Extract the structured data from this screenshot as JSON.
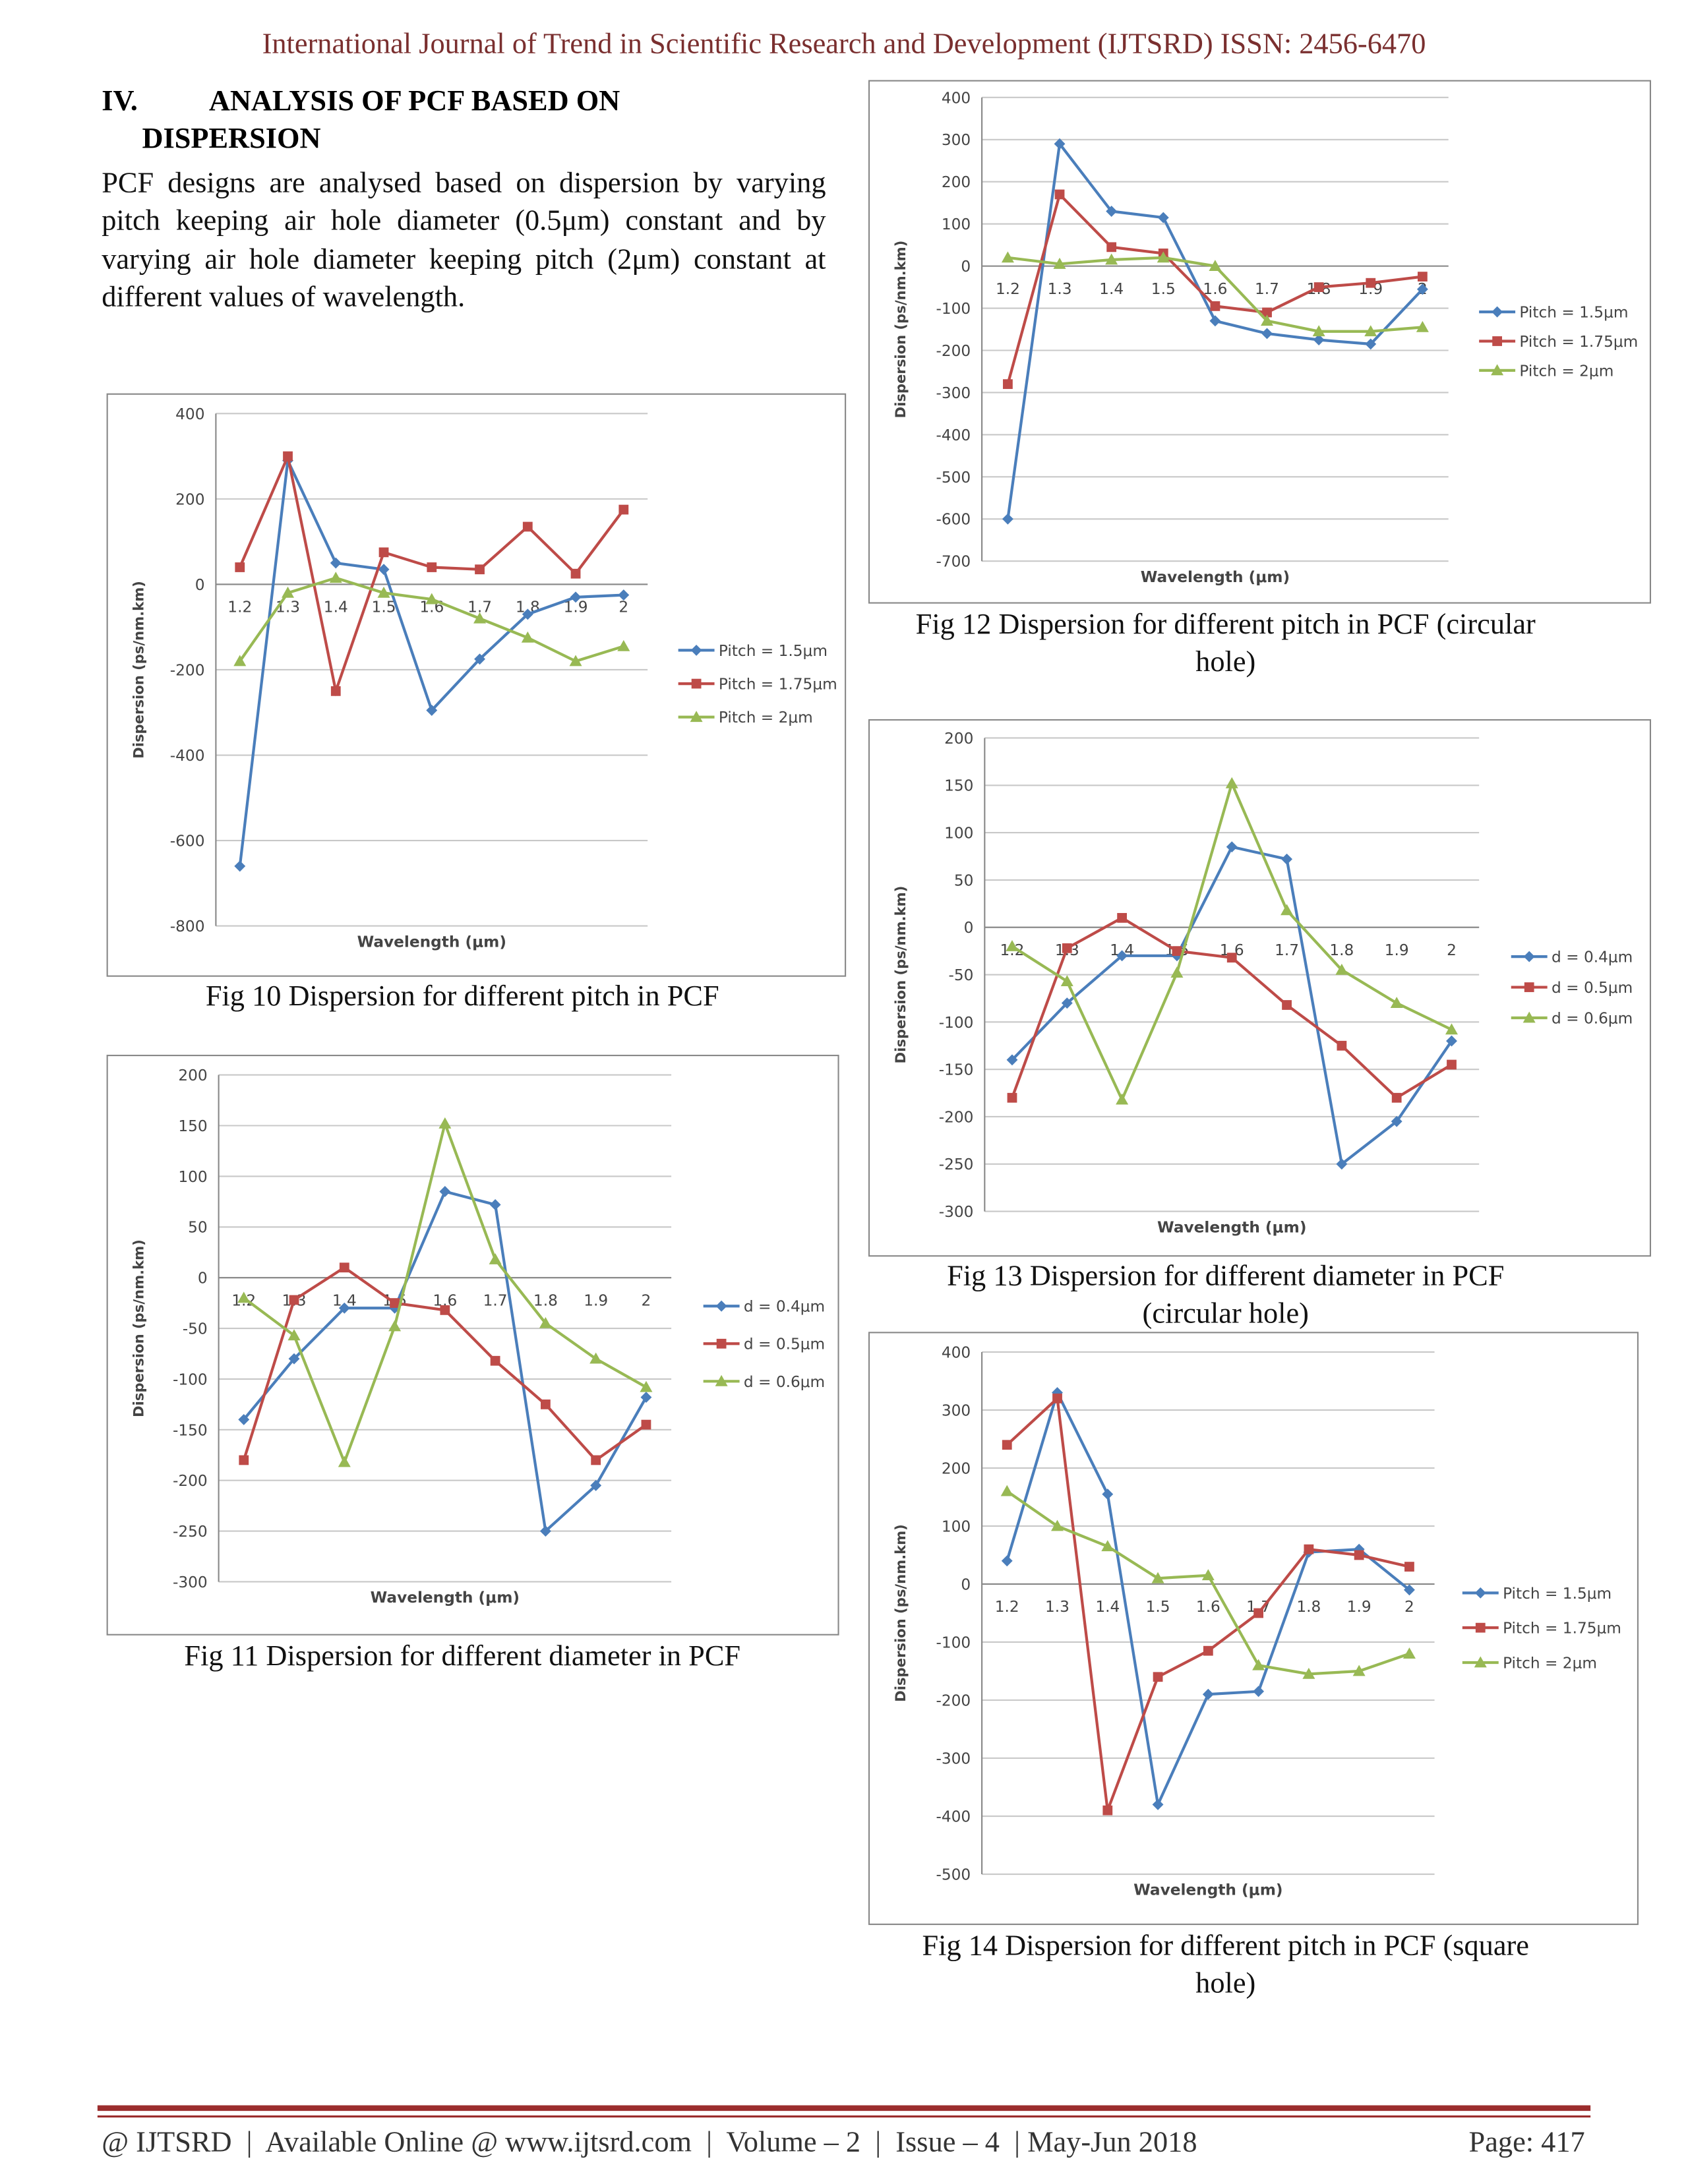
{
  "header": "International Journal of Trend in Scientific Research and Development (IJTSRD) ISSN: 2456-6470",
  "section": {
    "number": "IV.",
    "title": [
      "ANALYSIS OF PCF BASED ON",
      "DISPERSION"
    ]
  },
  "paragraph": "PCF designs are analysed based on dispersion by varying pitch keeping air hole diameter (0.5μm) constant and by varying air hole diameter keeping pitch (2μm) constant at different values of wavelength.",
  "footer": {
    "left": "@ IJTSRD  |  Available Online @ www.ijtsrd.com  |  Volume – 2  |  Issue – 4  | May-Jun 2018",
    "page": "Page: 417"
  },
  "chart_data": [
    {
      "type": "line",
      "caption": [
        "Fig 10 Dispersion for different pitch in PCF"
      ],
      "xlabel": "Wavelength (μm)",
      "ylabel": "Dispersion (ps/nm.km)",
      "categories": [
        "1.2",
        "1.3",
        "1.4",
        "1.5",
        "1.6",
        "1.7",
        "1.8",
        "1.9",
        "2"
      ],
      "series": [
        {
          "name": "Pitch = 1.5μm",
          "color": "#4a7ebb",
          "values": [
            -660,
            290,
            50,
            35,
            -295,
            -175,
            -70,
            -30,
            -25
          ]
        },
        {
          "name": "Pitch = 1.75μm",
          "color": "#be4b48",
          "values": [
            40,
            300,
            -250,
            75,
            40,
            35,
            135,
            25,
            175
          ]
        },
        {
          "name": "Pitch = 2μm",
          "color": "#98b954",
          "values": [
            -180,
            -20,
            15,
            -20,
            -35,
            -80,
            -125,
            -180,
            -145
          ]
        }
      ],
      "ylim": [
        -800,
        400
      ],
      "yticks": [
        400,
        200,
        0,
        -200,
        -400,
        -600,
        -800
      ],
      "grid": true
    },
    {
      "type": "line",
      "caption": [
        "Fig 11 Dispersion for different diameter in PCF"
      ],
      "xlabel": "Wavelength (μm)",
      "ylabel": "Dispersion (ps/nm.km)",
      "categories": [
        "1.2",
        "1.3",
        "1.4",
        "1.5",
        "1.6",
        "1.7",
        "1.8",
        "1.9",
        "2"
      ],
      "series": [
        {
          "name": "d = 0.4μm",
          "color": "#4a7ebb",
          "values": [
            -140,
            -80,
            -30,
            -30,
            85,
            72,
            -250,
            -205,
            -118
          ]
        },
        {
          "name": "d = 0.5μm",
          "color": "#be4b48",
          "values": [
            -180,
            -22,
            10,
            -25,
            -32,
            -82,
            -125,
            -180,
            -145
          ]
        },
        {
          "name": "d = 0.6μm",
          "color": "#98b954",
          "values": [
            -20,
            -57,
            -182,
            -48,
            152,
            18,
            -45,
            -80,
            -108
          ]
        }
      ],
      "ylim": [
        -300,
        200
      ],
      "yticks": [
        200,
        150,
        100,
        50,
        0,
        -50,
        -100,
        -150,
        -200,
        -250,
        -300
      ],
      "grid": true
    },
    {
      "type": "line",
      "caption": [
        "Fig 12 Dispersion for different pitch in PCF (circular",
        "hole)"
      ],
      "xlabel": "Wavelength (μm)",
      "ylabel": "Dispersion (ps/nm.km)",
      "categories": [
        "1.2",
        "1.3",
        "1.4",
        "1.5",
        "1.6",
        "1.7",
        "1.8",
        "1.9",
        "2"
      ],
      "series": [
        {
          "name": "Pitch = 1.5μm",
          "color": "#4a7ebb",
          "values": [
            -600,
            290,
            130,
            115,
            -130,
            -160,
            -175,
            -185,
            -55
          ]
        },
        {
          "name": "Pitch = 1.75μm",
          "color": "#be4b48",
          "values": [
            -280,
            170,
            45,
            30,
            -95,
            -110,
            -50,
            -40,
            -25
          ]
        },
        {
          "name": "Pitch = 2μm",
          "color": "#98b954",
          "values": [
            20,
            5,
            15,
            20,
            0,
            -130,
            -155,
            -155,
            -145
          ]
        }
      ],
      "ylim": [
        -700,
        400
      ],
      "yticks": [
        400,
        300,
        200,
        100,
        0,
        -100,
        -200,
        -300,
        -400,
        -500,
        -600,
        -700
      ],
      "grid": true
    },
    {
      "type": "line",
      "caption": [
        "Fig 13 Dispersion for different diameter in PCF",
        "(circular hole)"
      ],
      "xlabel": "Wavelength (μm)",
      "ylabel": "Dispersion (ps/nm.km)",
      "categories": [
        "1.2",
        "1.3",
        "1.4",
        "1.5",
        "1.6",
        "1.7",
        "1.8",
        "1.9",
        "2"
      ],
      "series": [
        {
          "name": "d = 0.4μm",
          "color": "#4a7ebb",
          "values": [
            -140,
            -80,
            -30,
            -30,
            85,
            72,
            -250,
            -205,
            -120
          ]
        },
        {
          "name": "d = 0.5μm",
          "color": "#be4b48",
          "values": [
            -180,
            -22,
            10,
            -25,
            -32,
            -82,
            -125,
            -180,
            -145
          ]
        },
        {
          "name": "d = 0.6μm",
          "color": "#98b954",
          "values": [
            -20,
            -57,
            -182,
            -48,
            152,
            18,
            -45,
            -80,
            -108
          ]
        }
      ],
      "ylim": [
        -300,
        200
      ],
      "yticks": [
        200,
        150,
        100,
        50,
        0,
        -50,
        -100,
        -150,
        -200,
        -250,
        -300
      ],
      "grid": true
    },
    {
      "type": "line",
      "caption": [
        "Fig 14 Dispersion for different pitch in PCF (square",
        "hole)"
      ],
      "xlabel": "Wavelength (μm)",
      "ylabel": "Dispersion (ps/nm.km)",
      "categories": [
        "1.2",
        "1.3",
        "1.4",
        "1.5",
        "1.6",
        "1.7",
        "1.8",
        "1.9",
        "2"
      ],
      "series": [
        {
          "name": "Pitch = 1.5μm",
          "color": "#4a7ebb",
          "values": [
            40,
            330,
            155,
            -380,
            -190,
            -185,
            55,
            60,
            -10
          ]
        },
        {
          "name": "Pitch = 1.75μm",
          "color": "#be4b48",
          "values": [
            240,
            320,
            -390,
            -160,
            -115,
            -50,
            60,
            50,
            30
          ]
        },
        {
          "name": "Pitch = 2μm",
          "color": "#98b954",
          "values": [
            160,
            100,
            65,
            10,
            15,
            -140,
            -155,
            -150,
            -120
          ]
        }
      ],
      "ylim": [
        -500,
        400
      ],
      "yticks": [
        400,
        300,
        200,
        100,
        0,
        -100,
        -200,
        -300,
        -400,
        -500
      ],
      "grid": true
    }
  ]
}
